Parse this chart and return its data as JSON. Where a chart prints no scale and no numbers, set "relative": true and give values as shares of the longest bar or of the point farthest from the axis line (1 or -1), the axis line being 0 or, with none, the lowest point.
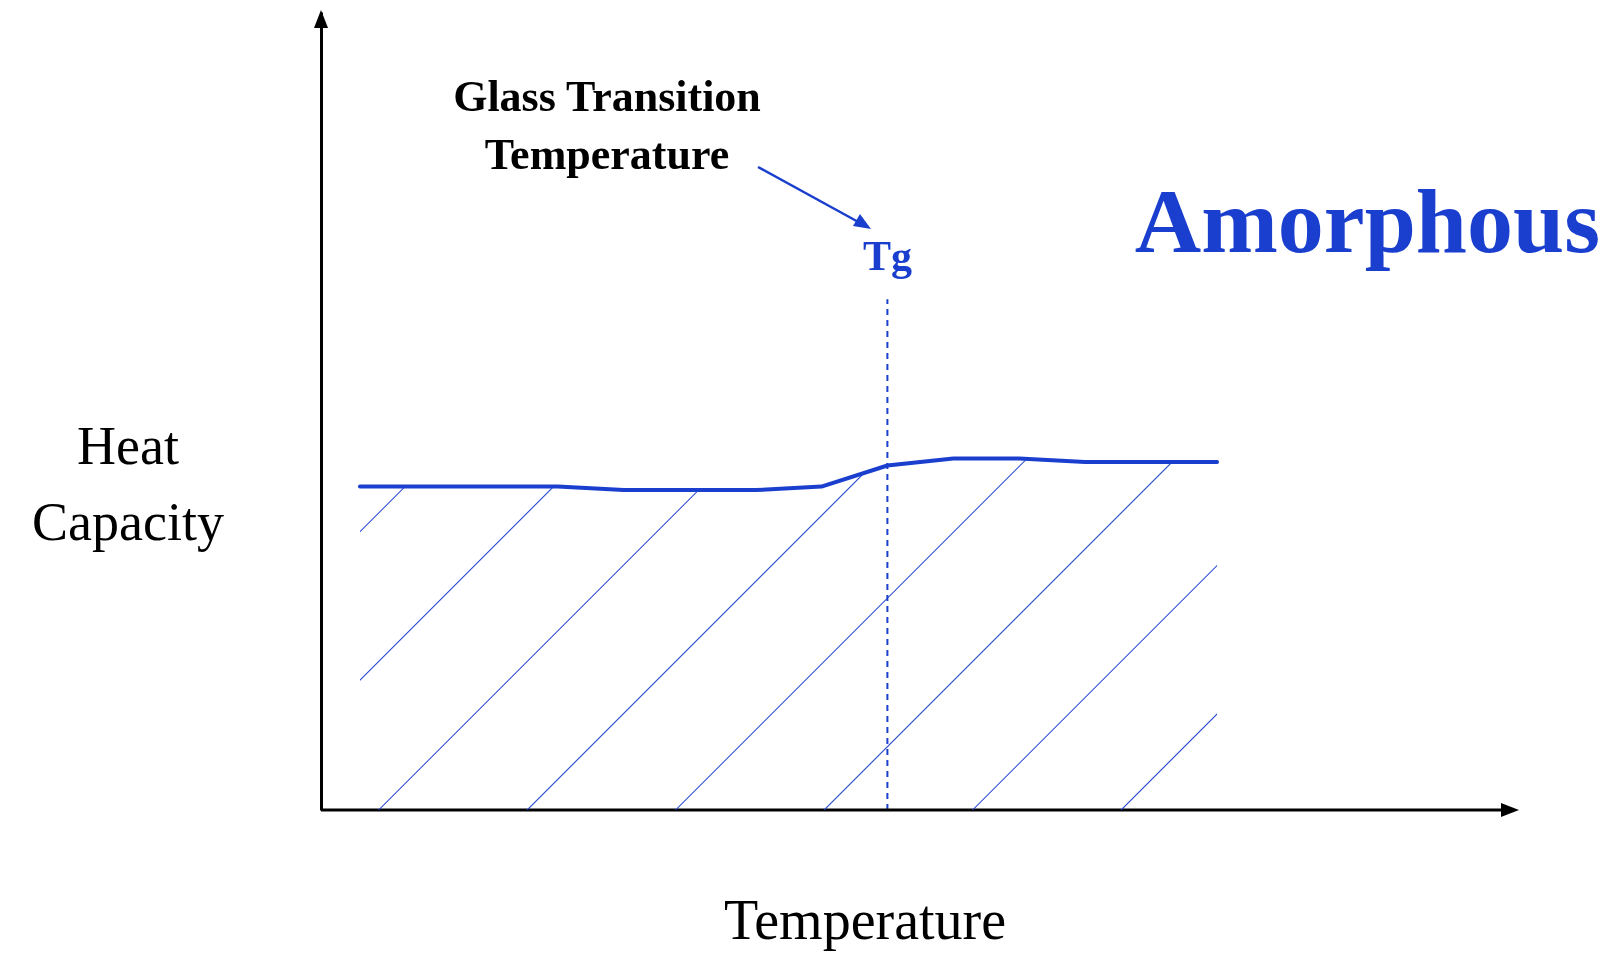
{
  "chart_data": {
    "type": "line",
    "title": "Amorphous",
    "xlabel": "Temperature",
    "ylabel": "Heat Capacity",
    "relative": true,
    "categories": [
      null,
      null,
      null,
      null,
      null,
      null,
      null,
      null,
      null,
      null,
      null,
      null,
      null,
      null
    ],
    "series": [
      {
        "color": "#1a3fcf",
        "values": [
          0.92,
          0.92,
          0.92,
          0.92,
          0.91,
          0.91,
          0.91,
          0.92,
          0.98,
          1,
          1,
          0.99,
          0.99,
          0.99
        ]
      }
    ],
    "ref_lines": [
      {
        "axis": "x",
        "label": "Tg",
        "line_style": "dashed",
        "color": "#1a3fcf"
      }
    ],
    "annotations": [
      "Glass Transition Temperature"
    ]
  }
}
